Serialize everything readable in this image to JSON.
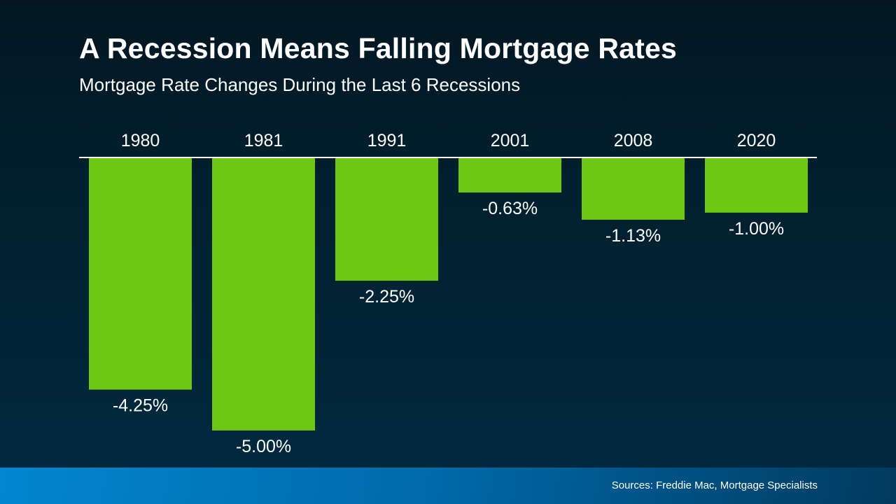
{
  "title": "A Recession Means Falling Mortgage Rates",
  "subtitle": "Mortgage Rate Changes During the Last 6 Recessions",
  "source": "Sources: Freddie Mac, Mortgage Specialists",
  "colors": {
    "bar": "#6cc812",
    "axis": "#ffffff",
    "text": "#ffffff"
  },
  "chart_data": {
    "type": "bar",
    "title": "A Recession Means Falling Mortgage Rates",
    "subtitle": "Mortgage Rate Changes During the Last 6 Recessions",
    "categories": [
      "1980",
      "1981",
      "1991",
      "2001",
      "2008",
      "2020"
    ],
    "values": [
      -4.25,
      -5.0,
      -2.25,
      -0.63,
      -1.13,
      -1.0
    ],
    "data_labels": [
      "-4.25%",
      "-5.00%",
      "-2.25%",
      "-0.63%",
      "-1.13%",
      "-1.00%"
    ],
    "category_labels_position": "top",
    "ylim": [
      -5,
      0
    ],
    "grid": false,
    "legend": "none"
  }
}
